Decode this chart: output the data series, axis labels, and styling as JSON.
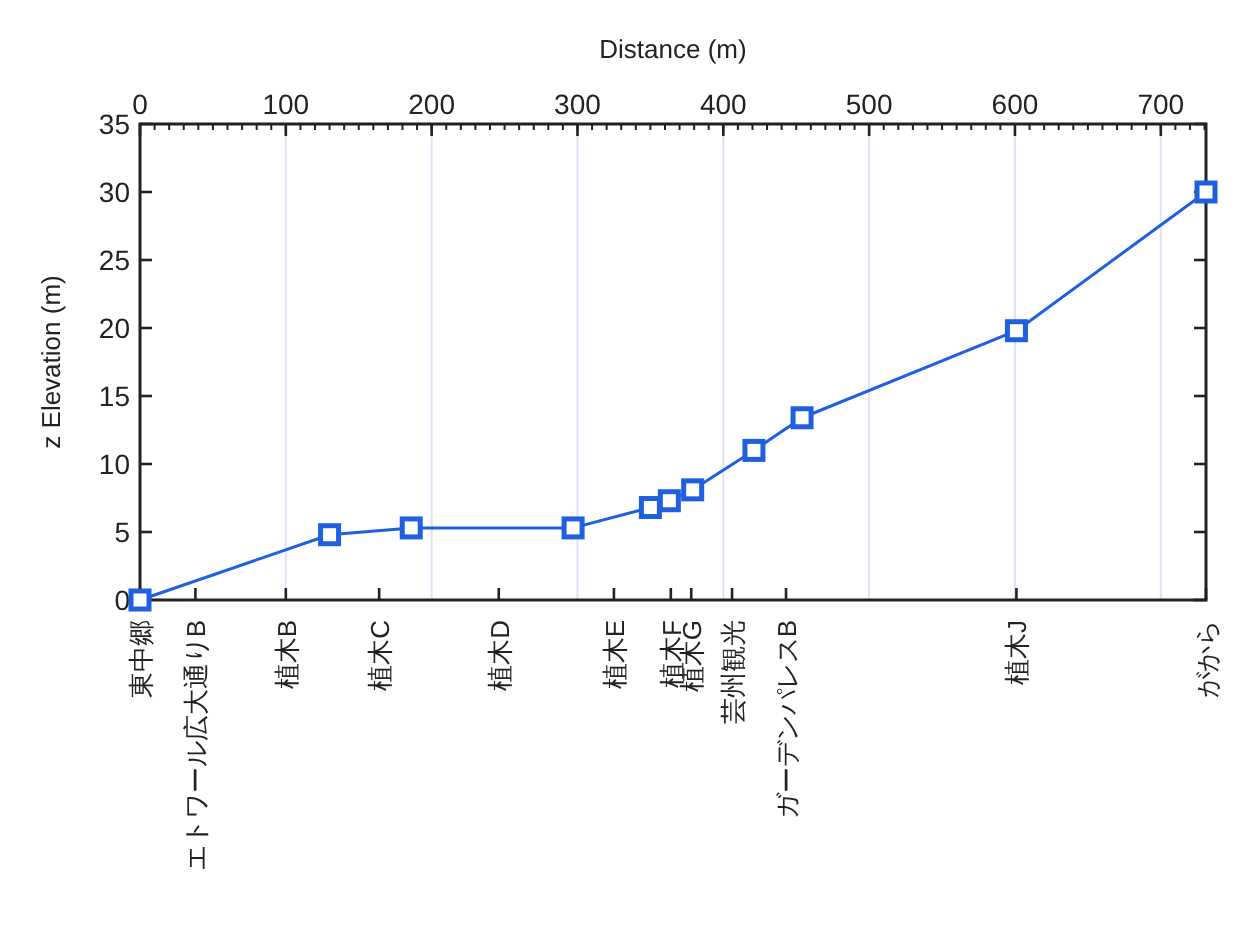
{
  "chart_data": {
    "type": "line",
    "xlabel": "Distance (m)",
    "ylabel": "z Elevation (m)",
    "marker": "square",
    "grid": "x",
    "x": [
      0,
      130,
      186,
      297,
      350,
      363,
      379,
      421,
      454,
      601,
      731
    ],
    "series": [
      {
        "color": "#1f5fe0",
        "values": [
          0,
          4.8,
          5.3,
          5.3,
          6.8,
          7.3,
          8.1,
          11.0,
          13.4,
          19.8,
          30.0
        ]
      }
    ],
    "xlim": [
      0,
      731
    ],
    "xticks": [
      0,
      100,
      200,
      300,
      400,
      500,
      600,
      700
    ],
    "ref_lines": [
      {
        "axis": "x",
        "value": 0,
        "label": "東中郷"
      },
      {
        "axis": "x",
        "value": 38,
        "label": "エトワール広大通りB"
      },
      {
        "axis": "x",
        "value": 100,
        "label": "植木B"
      },
      {
        "axis": "x",
        "value": 164,
        "label": "植木C"
      },
      {
        "axis": "x",
        "value": 246,
        "label": "植木D"
      },
      {
        "axis": "x",
        "value": 325,
        "label": "植木E"
      },
      {
        "axis": "x",
        "value": 364,
        "label": "植木F"
      },
      {
        "axis": "x",
        "value": 378,
        "label": "植木G"
      },
      {
        "axis": "x",
        "value": 406,
        "label": "芸州観光"
      },
      {
        "axis": "x",
        "value": 443,
        "label": "ガーデンパレスB"
      },
      {
        "axis": "x",
        "value": 601,
        "label": "植木J"
      },
      {
        "axis": "x",
        "value": 731,
        "label": "がから"
      }
    ],
    "ylim": [
      0,
      35
    ],
    "yticks": [
      0,
      5,
      10,
      15,
      20,
      25,
      30,
      35
    ]
  }
}
